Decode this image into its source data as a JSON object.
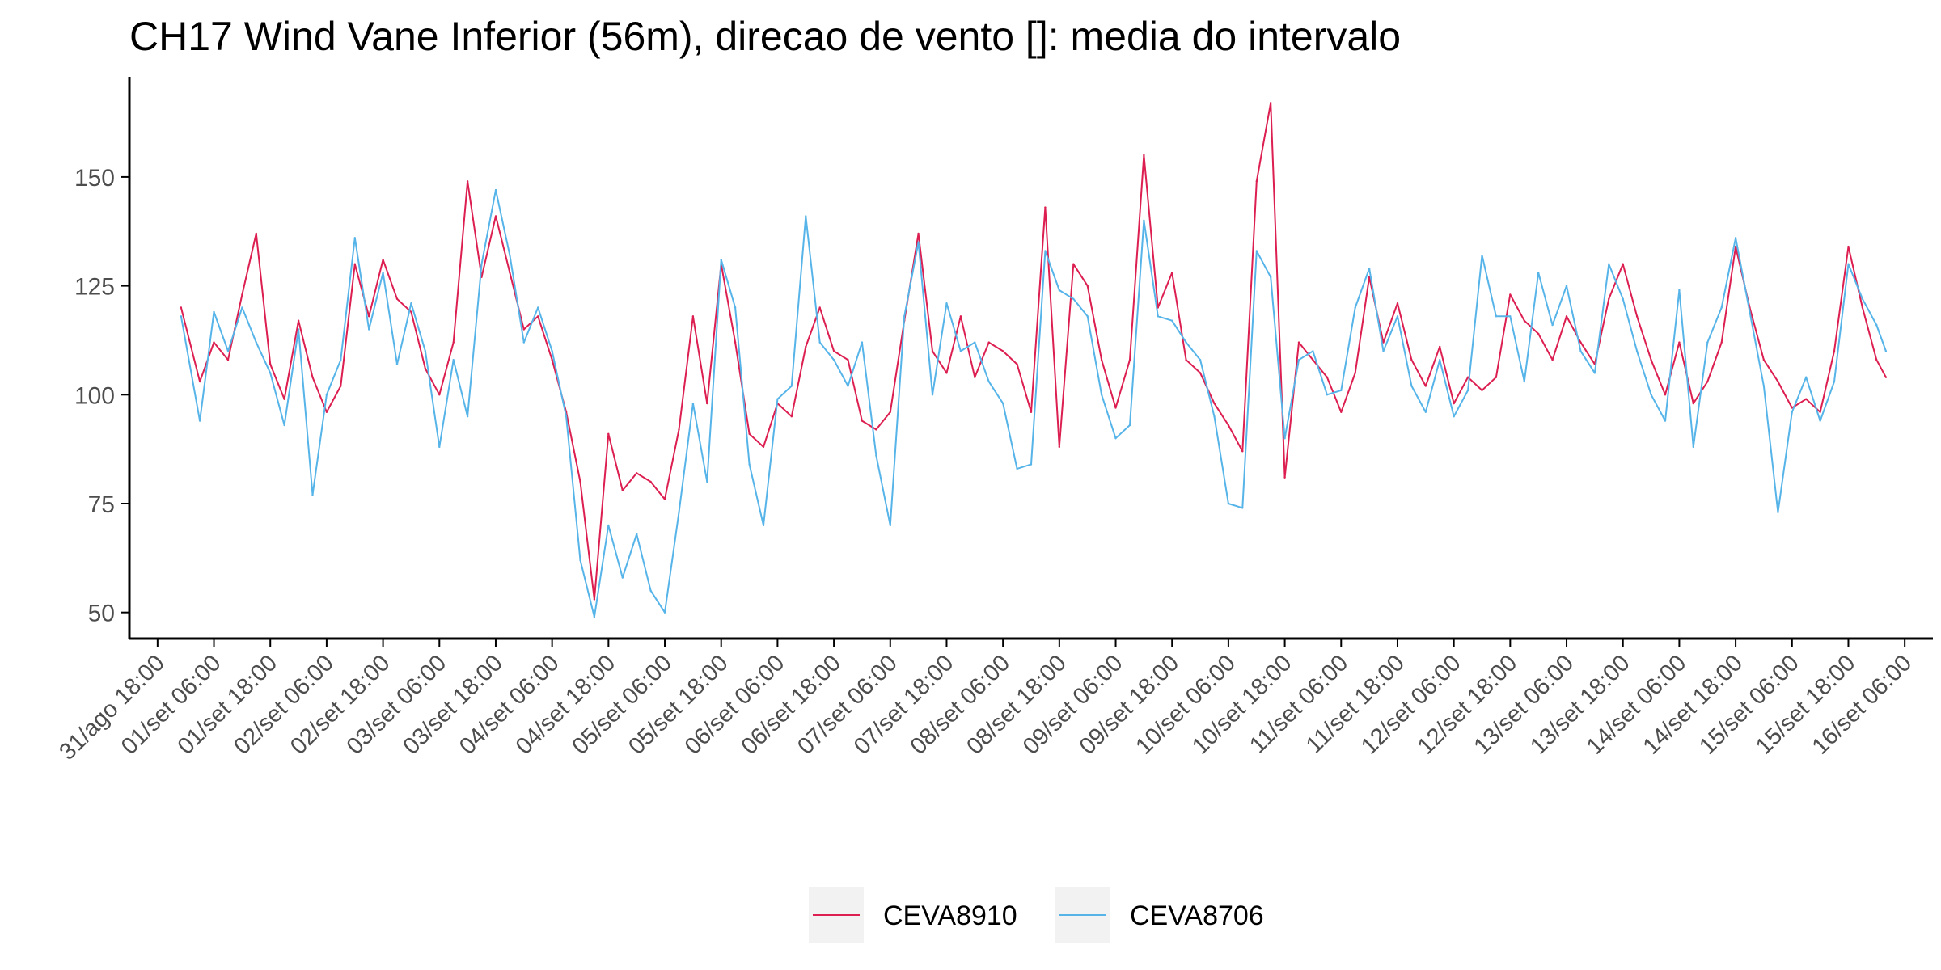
{
  "chart_data": {
    "type": "line",
    "title": "CH17 Wind Vane Inferior (56m), direcao de vento []: media do intervalo",
    "xlabel": "",
    "ylabel": "",
    "ylim": [
      44,
      173
    ],
    "y_ticks": [
      50,
      75,
      100,
      125,
      150
    ],
    "x_tick_labels": [
      "31/ago 18:00",
      "01/set 06:00",
      "01/set 18:00",
      "02/set 06:00",
      "02/set 18:00",
      "03/set 06:00",
      "03/set 18:00",
      "04/set 06:00",
      "04/set 18:00",
      "05/set 06:00",
      "05/set 18:00",
      "06/set 06:00",
      "06/set 18:00",
      "07/set 06:00",
      "07/set 18:00",
      "08/set 06:00",
      "08/set 18:00",
      "09/set 06:00",
      "09/set 18:00",
      "10/set 06:00",
      "10/set 18:00",
      "11/set 06:00",
      "11/set 18:00",
      "12/set 06:00",
      "12/set 18:00",
      "13/set 06:00",
      "13/set 18:00",
      "14/set 06:00",
      "14/set 18:00",
      "15/set 06:00",
      "15/set 18:00",
      "16/set 06:00"
    ],
    "xlim": [
      "31/ago 12:00",
      "16/set 12:00"
    ],
    "grid": false,
    "legend_position": "bottom",
    "series": [
      {
        "name": "CEVA8910",
        "color": "#dc1e50",
        "x": [
          "31/ago 23:00",
          "01/set 03:00",
          "01/set 06:00",
          "01/set 09:00",
          "01/set 12:00",
          "01/set 15:00",
          "01/set 18:00",
          "01/set 21:00",
          "02/set 00:00",
          "02/set 03:00",
          "02/set 06:00",
          "02/set 09:00",
          "02/set 12:00",
          "02/set 15:00",
          "02/set 18:00",
          "02/set 21:00",
          "03/set 00:00",
          "03/set 03:00",
          "03/set 06:00",
          "03/set 09:00",
          "03/set 12:00",
          "03/set 15:00",
          "03/set 18:00",
          "03/set 21:00",
          "04/set 00:00",
          "04/set 03:00",
          "04/set 06:00",
          "04/set 09:00",
          "04/set 12:00",
          "04/set 15:00",
          "04/set 18:00",
          "04/set 21:00",
          "05/set 00:00",
          "05/set 03:00",
          "05/set 06:00",
          "05/set 09:00",
          "05/set 12:00",
          "05/set 15:00",
          "05/set 18:00",
          "05/set 21:00",
          "06/set 00:00",
          "06/set 03:00",
          "06/set 06:00",
          "06/set 09:00",
          "06/set 12:00",
          "06/set 15:00",
          "06/set 18:00",
          "06/set 21:00",
          "07/set 00:00",
          "07/set 03:00",
          "07/set 06:00",
          "07/set 09:00",
          "07/set 12:00",
          "07/set 15:00",
          "07/set 18:00",
          "07/set 21:00",
          "08/set 00:00",
          "08/set 03:00",
          "08/set 06:00",
          "08/set 09:00",
          "08/set 12:00",
          "08/set 15:00",
          "08/set 18:00",
          "08/set 21:00",
          "09/set 00:00",
          "09/set 03:00",
          "09/set 06:00",
          "09/set 09:00",
          "09/set 12:00",
          "09/set 15:00",
          "09/set 18:00",
          "09/set 21:00",
          "10/set 00:00",
          "10/set 03:00",
          "10/set 06:00",
          "10/set 09:00",
          "10/set 12:00",
          "10/set 15:00",
          "10/set 18:00",
          "10/set 21:00",
          "11/set 00:00",
          "11/set 03:00",
          "11/set 06:00",
          "11/set 09:00",
          "11/set 12:00",
          "11/set 15:00",
          "11/set 18:00",
          "11/set 21:00",
          "12/set 00:00",
          "12/set 03:00",
          "12/set 06:00",
          "12/set 09:00",
          "12/set 12:00",
          "12/set 15:00",
          "12/set 18:00",
          "12/set 21:00",
          "13/set 00:00",
          "13/set 03:00",
          "13/set 06:00",
          "13/set 09:00",
          "13/set 12:00",
          "13/set 15:00",
          "13/set 18:00",
          "13/set 21:00",
          "14/set 00:00",
          "14/set 03:00",
          "14/set 06:00",
          "14/set 09:00",
          "14/set 12:00",
          "14/set 15:00",
          "14/set 18:00",
          "14/set 21:00",
          "15/set 00:00",
          "15/set 03:00",
          "15/set 06:00",
          "15/set 09:00",
          "15/set 12:00",
          "15/set 15:00",
          "15/set 18:00",
          "15/set 21:00",
          "16/set 00:00",
          "16/set 02:00"
        ],
        "y": [
          120,
          103,
          112,
          108,
          123,
          137,
          107,
          99,
          117,
          104,
          96,
          102,
          130,
          118,
          131,
          122,
          119,
          106,
          100,
          112,
          149,
          127,
          141,
          128,
          115,
          118,
          108,
          96,
          80,
          53,
          91,
          78,
          82,
          80,
          76,
          92,
          118,
          98,
          130,
          112,
          91,
          88,
          98,
          95,
          111,
          120,
          110,
          108,
          94,
          92,
          96,
          117,
          137,
          110,
          105,
          118,
          104,
          112,
          110,
          107,
          96,
          143,
          88,
          130,
          125,
          108,
          97,
          108,
          155,
          120,
          128,
          108,
          105,
          98,
          93,
          87,
          149,
          167,
          81,
          112,
          108,
          104,
          96,
          105,
          127,
          112,
          121,
          108,
          102,
          111,
          98,
          104,
          101,
          104,
          123,
          117,
          114,
          108,
          118,
          112,
          107,
          122,
          130,
          118,
          108,
          100,
          112,
          98,
          103,
          112,
          134,
          120,
          108,
          103,
          97,
          99,
          96,
          110,
          134,
          120,
          108,
          104
        ]
      },
      {
        "name": "CEVA8706",
        "color": "#56b4e9",
        "x": [
          "31/ago 23:00",
          "01/set 03:00",
          "01/set 06:00",
          "01/set 09:00",
          "01/set 12:00",
          "01/set 15:00",
          "01/set 18:00",
          "01/set 21:00",
          "02/set 00:00",
          "02/set 03:00",
          "02/set 06:00",
          "02/set 09:00",
          "02/set 12:00",
          "02/set 15:00",
          "02/set 18:00",
          "02/set 21:00",
          "03/set 00:00",
          "03/set 03:00",
          "03/set 06:00",
          "03/set 09:00",
          "03/set 12:00",
          "03/set 15:00",
          "03/set 18:00",
          "03/set 21:00",
          "04/set 00:00",
          "04/set 03:00",
          "04/set 06:00",
          "04/set 09:00",
          "04/set 12:00",
          "04/set 15:00",
          "04/set 18:00",
          "04/set 21:00",
          "05/set 00:00",
          "05/set 03:00",
          "05/set 06:00",
          "05/set 09:00",
          "05/set 12:00",
          "05/set 15:00",
          "05/set 18:00",
          "05/set 21:00",
          "06/set 00:00",
          "06/set 03:00",
          "06/set 06:00",
          "06/set 09:00",
          "06/set 12:00",
          "06/set 15:00",
          "06/set 18:00",
          "06/set 21:00",
          "07/set 00:00",
          "07/set 03:00",
          "07/set 06:00",
          "07/set 09:00",
          "07/set 12:00",
          "07/set 15:00",
          "07/set 18:00",
          "07/set 21:00",
          "08/set 00:00",
          "08/set 03:00",
          "08/set 06:00",
          "08/set 09:00",
          "08/set 12:00",
          "08/set 15:00",
          "08/set 18:00",
          "08/set 21:00",
          "09/set 00:00",
          "09/set 03:00",
          "09/set 06:00",
          "09/set 09:00",
          "09/set 12:00",
          "09/set 15:00",
          "09/set 18:00",
          "09/set 21:00",
          "10/set 00:00",
          "10/set 03:00",
          "10/set 06:00",
          "10/set 09:00",
          "10/set 12:00",
          "10/set 15:00",
          "10/set 18:00",
          "10/set 21:00",
          "11/set 00:00",
          "11/set 03:00",
          "11/set 06:00",
          "11/set 09:00",
          "11/set 12:00",
          "11/set 15:00",
          "11/set 18:00",
          "11/set 21:00",
          "12/set 00:00",
          "12/set 03:00",
          "12/set 06:00",
          "12/set 09:00",
          "12/set 12:00",
          "12/set 15:00",
          "12/set 18:00",
          "12/set 21:00",
          "13/set 00:00",
          "13/set 03:00",
          "13/set 06:00",
          "13/set 09:00",
          "13/set 12:00",
          "13/set 15:00",
          "13/set 18:00",
          "13/set 21:00",
          "14/set 00:00",
          "14/set 03:00",
          "14/set 06:00",
          "14/set 09:00",
          "14/set 12:00",
          "14/set 15:00",
          "14/set 18:00",
          "14/set 21:00",
          "15/set 00:00",
          "15/set 03:00",
          "15/set 06:00",
          "15/set 09:00",
          "15/set 12:00",
          "15/set 15:00",
          "15/set 18:00",
          "15/set 21:00",
          "16/set 00:00",
          "16/set 02:00"
        ],
        "y": [
          118,
          94,
          119,
          110,
          120,
          112,
          105,
          93,
          115,
          77,
          100,
          108,
          136,
          115,
          128,
          107,
          121,
          110,
          88,
          108,
          95,
          130,
          147,
          132,
          112,
          120,
          110,
          95,
          62,
          49,
          70,
          58,
          68,
          55,
          50,
          73,
          98,
          80,
          131,
          120,
          84,
          70,
          99,
          102,
          141,
          112,
          108,
          102,
          112,
          86,
          70,
          118,
          135,
          100,
          121,
          110,
          112,
          103,
          98,
          83,
          84,
          133,
          124,
          122,
          118,
          100,
          90,
          93,
          140,
          118,
          117,
          112,
          108,
          95,
          75,
          74,
          133,
          127,
          90,
          108,
          110,
          100,
          101,
          120,
          129,
          110,
          118,
          102,
          96,
          108,
          95,
          101,
          132,
          118,
          118,
          103,
          128,
          116,
          125,
          110,
          105,
          130,
          122,
          110,
          100,
          94,
          124,
          88,
          112,
          120,
          136,
          119,
          102,
          73,
          96,
          104,
          94,
          103,
          130,
          122,
          116,
          110
        ]
      }
    ]
  }
}
